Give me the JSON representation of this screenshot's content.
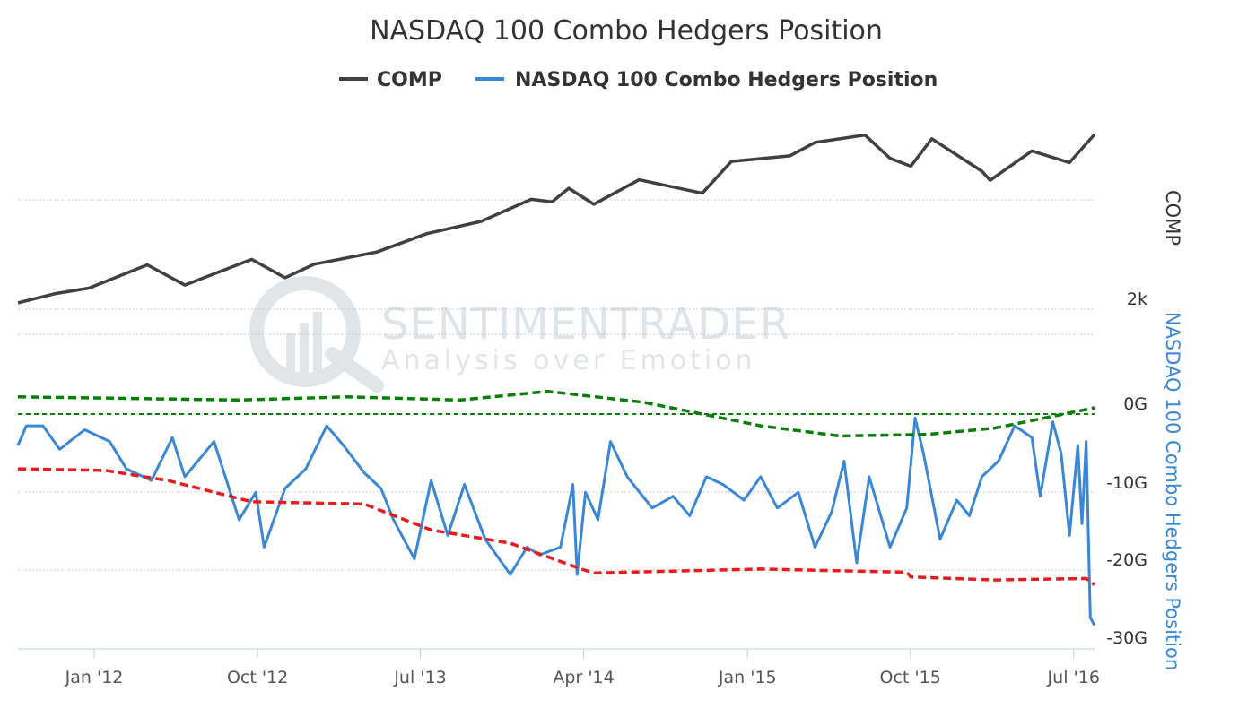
{
  "chart_data": {
    "type": "line",
    "title": "NASDAQ 100 Combo Hedgers Position",
    "legend": [
      "COMP",
      "NASDAQ 100 Combo Hedgers Position"
    ],
    "legend_position": "top-center",
    "x_ticks": [
      "Jan '12",
      "Oct '12",
      "Jul '13",
      "Apr '14",
      "Jan '15",
      "Oct '15",
      "Jul '16"
    ],
    "x_range": [
      "2011-08-26",
      "2016-08-05"
    ],
    "y_axes": {
      "comp": {
        "title": "COMP",
        "tick_labels": [
          "2k"
        ]
      },
      "hedgers": {
        "title": "NASDAQ 100 Combo Hedgers Position",
        "tick_labels": [
          "0G",
          "-10G",
          "-20G",
          "-30G"
        ],
        "range": [
          -30,
          0
        ]
      }
    },
    "watermark": {
      "title": "SENTIMENTRADER",
      "subtitle": "Analysis over Emotion"
    },
    "colors": {
      "comp": "#404040",
      "hedgers": "#3a87d6",
      "upper_band": "#0a7d0a",
      "lower_band": "#e61d1d",
      "grid": "#c8c8c8"
    },
    "series": [
      {
        "name": "COMP",
        "unit": "index",
        "x": [
          "2011-08-26",
          "2011-10-28",
          "2011-12-23",
          "2012-03-30",
          "2012-06-01",
          "2012-09-21",
          "2012-11-16",
          "2013-01-04",
          "2013-04-19",
          "2013-07-12",
          "2013-10-11",
          "2014-01-03",
          "2014-02-07",
          "2014-03-07",
          "2014-04-18",
          "2014-07-03",
          "2014-10-17",
          "2014-12-05",
          "2015-03-13",
          "2015-04-24",
          "2015-07-17",
          "2015-08-28",
          "2015-10-02",
          "2015-11-06",
          "2016-01-29",
          "2016-02-12",
          "2016-04-22",
          "2016-06-24",
          "2016-08-05"
        ],
        "values": [
          2470,
          2620,
          2710,
          3090,
          2760,
          3180,
          2880,
          3100,
          3300,
          3600,
          3800,
          4160,
          4120,
          4340,
          4080,
          4480,
          4260,
          4780,
          4870,
          5090,
          5210,
          4830,
          4700,
          5150,
          4620,
          4470,
          4950,
          4760,
          5220
        ]
      },
      {
        "name": "NASDAQ 100 Combo Hedgers Position",
        "unit": "G",
        "x": [
          "2011-08-26",
          "2011-09-09",
          "2011-10-07",
          "2011-11-04",
          "2011-12-16",
          "2012-01-27",
          "2012-02-24",
          "2012-04-06",
          "2012-05-11",
          "2012-06-01",
          "2012-07-20",
          "2012-08-31",
          "2012-09-28",
          "2012-10-12",
          "2012-11-16",
          "2012-12-21",
          "2013-01-25",
          "2013-02-22",
          "2013-03-29",
          "2013-04-26",
          "2013-05-17",
          "2013-06-21",
          "2013-07-19",
          "2013-08-16",
          "2013-09-13",
          "2013-10-18",
          "2013-11-29",
          "2013-12-27",
          "2014-01-17",
          "2014-02-21",
          "2014-03-14",
          "2014-03-21",
          "2014-04-04",
          "2014-04-25",
          "2014-05-16",
          "2014-06-13",
          "2014-07-25",
          "2014-08-29",
          "2014-09-26",
          "2014-10-24",
          "2014-11-21",
          "2014-12-26",
          "2015-01-23",
          "2015-02-20",
          "2015-03-27",
          "2015-04-24",
          "2015-05-22",
          "2015-06-12",
          "2015-07-03",
          "2015-07-24",
          "2015-08-28",
          "2015-09-25",
          "2015-10-09",
          "2015-10-23",
          "2015-11-20",
          "2015-12-18",
          "2016-01-08",
          "2016-01-29",
          "2016-02-26",
          "2016-03-24",
          "2016-04-22",
          "2016-05-06",
          "2016-05-27",
          "2016-06-10",
          "2016-06-24",
          "2016-07-08",
          "2016-07-15",
          "2016-07-22",
          "2016-07-29",
          "2016-08-05"
        ],
        "values": [
          -4,
          -1.5,
          -1.5,
          -4.5,
          -2,
          -3.5,
          -7,
          -8.5,
          -3,
          -8,
          -3.5,
          -13.5,
          -10,
          -17,
          -9.5,
          -7,
          -1.5,
          -4,
          -7.5,
          -9.5,
          -13.5,
          -18.5,
          -8.5,
          -15.5,
          -9,
          -16,
          -20.5,
          -17,
          -18,
          -17,
          -9,
          -20.5,
          -10,
          -13.5,
          -3.5,
          -8,
          -12,
          -10.5,
          -13,
          -8,
          -9,
          -11,
          -8,
          -12,
          -10,
          -17,
          -12.5,
          -6,
          -19,
          -8,
          -17,
          -12,
          -0.5,
          -5,
          -16,
          -11,
          -13,
          -8,
          -6,
          -1.5,
          -3,
          -10.5,
          -1,
          -5,
          -15.5,
          -4,
          -14,
          -3.5,
          -26,
          -27
        ]
      },
      {
        "name": "",
        "style": "dashed",
        "unit": "G",
        "x": [
          "2011-08-26",
          "2012-02-24",
          "2012-08-31",
          "2013-03-01",
          "2013-09-06",
          "2014-01-31",
          "2014-07-11",
          "2015-01-23",
          "2015-06-05",
          "2015-10-30",
          "2016-02-19",
          "2016-08-05"
        ],
        "values": [
          2.2,
          2.0,
          1.8,
          2.2,
          1.8,
          2.9,
          1.5,
          -1.5,
          -2.8,
          -2.6,
          -1.8,
          0.8
        ]
      },
      {
        "name": "",
        "style": "dashed",
        "unit": "G",
        "x": [
          "2011-08-26",
          "2012-01-20",
          "2012-05-04",
          "2012-09-21",
          "2013-03-29",
          "2013-07-19",
          "2013-11-29",
          "2014-03-28",
          "2014-04-18",
          "2015-01-23",
          "2015-09-25",
          "2015-10-02",
          "2016-02-19",
          "2016-07-22",
          "2016-08-05"
        ],
        "values": [
          -7,
          -7.2,
          -8.5,
          -11.2,
          -11.5,
          -14.8,
          -16.5,
          -19.8,
          -20.3,
          -19.8,
          -20.2,
          -20.8,
          -21.2,
          -21,
          -21.8
        ]
      }
    ]
  }
}
